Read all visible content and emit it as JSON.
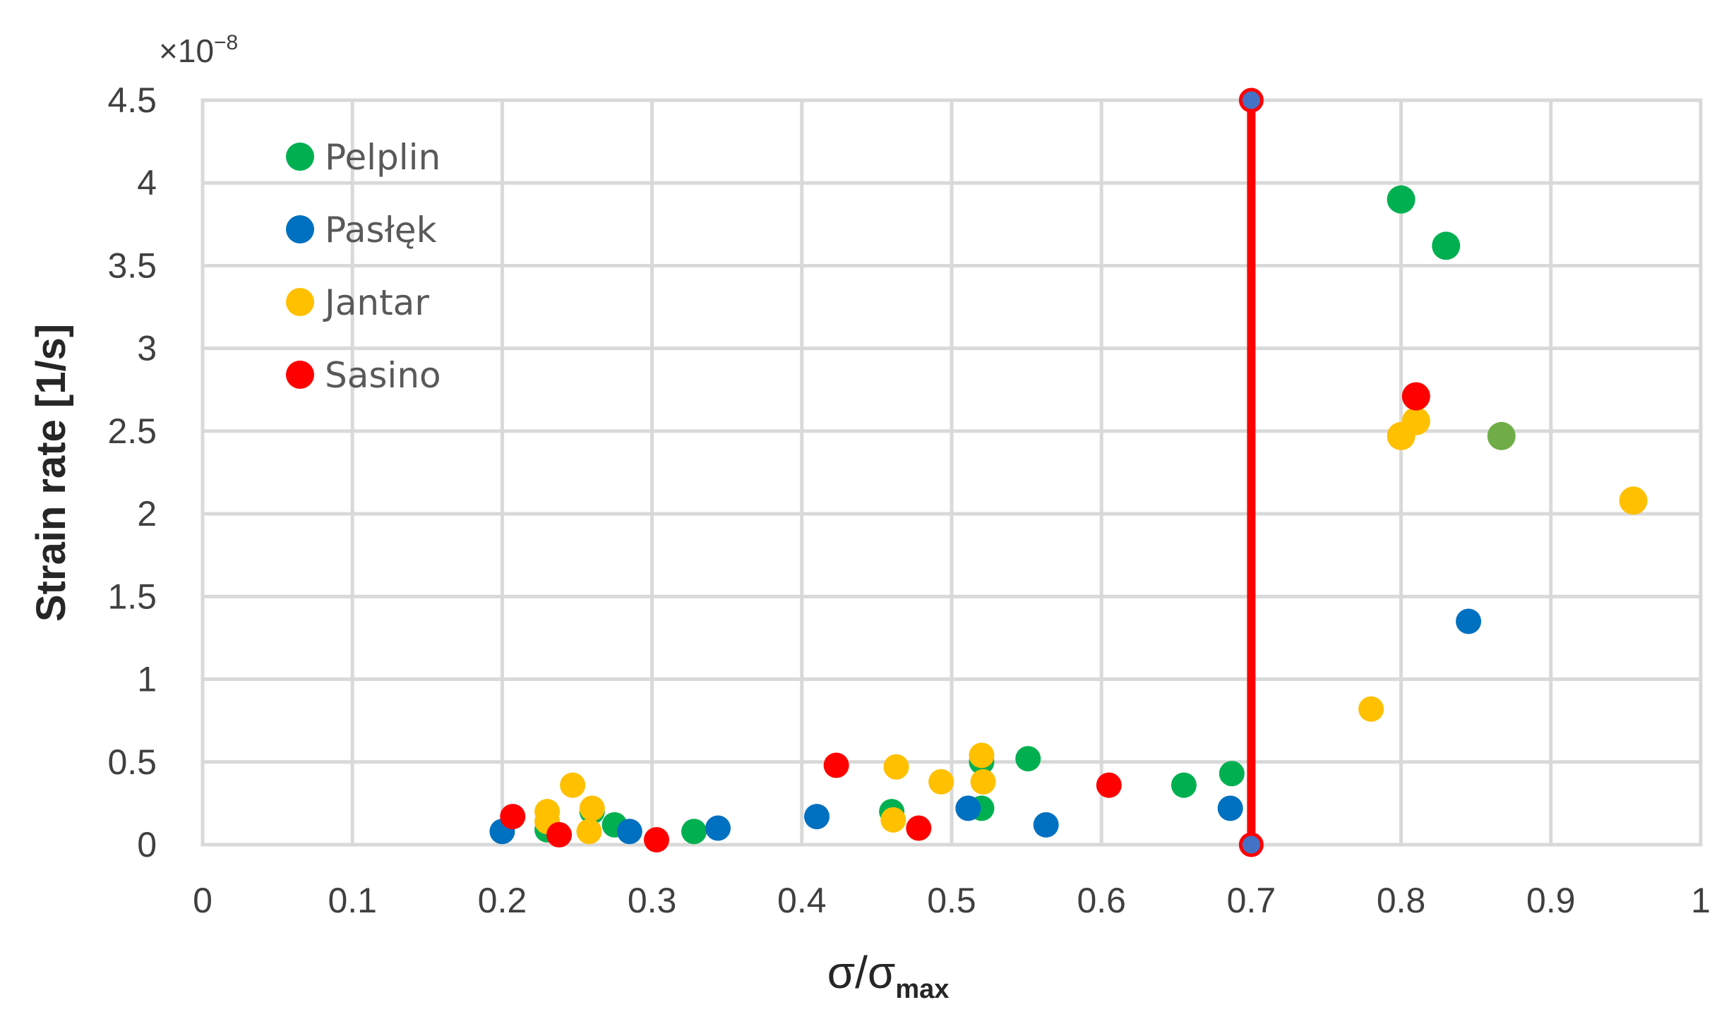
{
  "chart_data": {
    "type": "scatter",
    "title": "",
    "xlabel": "σ/σ",
    "xlabel_subscript": "max",
    "ylabel": "Strain rate [1/s]",
    "y_multiplier": "×10",
    "y_multiplier_exponent": "−8",
    "xlim": [
      0,
      1
    ],
    "ylim": [
      0,
      4.5
    ],
    "x_ticks": [
      "0",
      "0.1",
      "0.2",
      "0.3",
      "0.4",
      "0.5",
      "0.6",
      "0.7",
      "0.8",
      "0.9",
      "1"
    ],
    "y_ticks": [
      "0",
      "0.5",
      "1",
      "1.5",
      "2",
      "2.5",
      "3",
      "3.5",
      "4",
      "4.5"
    ],
    "grid": true,
    "legend_position": "top-left",
    "series": [
      {
        "name": "Pelplin",
        "color": "#00B050",
        "points": [
          {
            "x": 0.23,
            "y": 0.09
          },
          {
            "x": 0.26,
            "y": 0.2
          },
          {
            "x": 0.275,
            "y": 0.12
          },
          {
            "x": 0.328,
            "y": 0.08
          },
          {
            "x": 0.46,
            "y": 0.2
          },
          {
            "x": 0.52,
            "y": 0.5
          },
          {
            "x": 0.52,
            "y": 0.22
          },
          {
            "x": 0.551,
            "y": 0.52
          },
          {
            "x": 0.655,
            "y": 0.36
          },
          {
            "x": 0.687,
            "y": 0.43
          },
          {
            "x": 0.8,
            "y": 3.9
          },
          {
            "x": 0.83,
            "y": 3.62
          },
          {
            "x": 0.867,
            "y": 2.47,
            "color": "#70AD47"
          }
        ]
      },
      {
        "name": "Pasłęk",
        "color": "#0070C0",
        "points": [
          {
            "x": 0.2,
            "y": 0.08
          },
          {
            "x": 0.285,
            "y": 0.08
          },
          {
            "x": 0.344,
            "y": 0.1
          },
          {
            "x": 0.41,
            "y": 0.17
          },
          {
            "x": 0.511,
            "y": 0.22
          },
          {
            "x": 0.563,
            "y": 0.12
          },
          {
            "x": 0.686,
            "y": 0.22
          },
          {
            "x": 0.845,
            "y": 1.35
          }
        ]
      },
      {
        "name": "Jantar",
        "color": "#FFC000",
        "points": [
          {
            "x": 0.23,
            "y": 0.2
          },
          {
            "x": 0.23,
            "y": 0.14
          },
          {
            "x": 0.247,
            "y": 0.36
          },
          {
            "x": 0.26,
            "y": 0.22
          },
          {
            "x": 0.258,
            "y": 0.08
          },
          {
            "x": 0.461,
            "y": 0.15
          },
          {
            "x": 0.463,
            "y": 0.47
          },
          {
            "x": 0.493,
            "y": 0.38
          },
          {
            "x": 0.52,
            "y": 0.54
          },
          {
            "x": 0.521,
            "y": 0.38
          },
          {
            "x": 0.78,
            "y": 0.82
          },
          {
            "x": 0.8,
            "y": 2.47
          },
          {
            "x": 0.81,
            "y": 2.56
          },
          {
            "x": 0.955,
            "y": 2.08
          }
        ]
      },
      {
        "name": "Sasino",
        "color": "#FF0000",
        "points": [
          {
            "x": 0.207,
            "y": 0.17
          },
          {
            "x": 0.238,
            "y": 0.06
          },
          {
            "x": 0.303,
            "y": 0.03
          },
          {
            "x": 0.423,
            "y": 0.48
          },
          {
            "x": 0.478,
            "y": 0.1
          },
          {
            "x": 0.605,
            "y": 0.36
          },
          {
            "x": 0.81,
            "y": 2.71
          }
        ]
      }
    ],
    "reference_line": {
      "x": 0.7,
      "y_range": [
        0,
        4.5
      ],
      "color": "#FF0000",
      "endpoint_fill": "#4472C4",
      "endpoint_stroke": "#FF0000"
    }
  }
}
